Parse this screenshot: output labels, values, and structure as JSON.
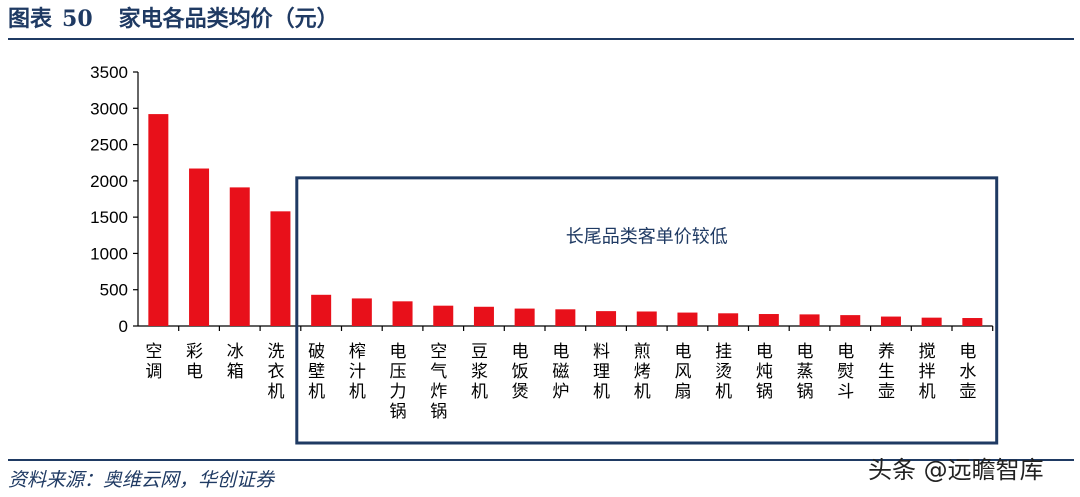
{
  "figure": {
    "label": "图表",
    "number": "50",
    "title": "家电各品类均价（元）",
    "source": "资料来源：奥维云网，华创证券",
    "watermark": "头条 @远瞻智库"
  },
  "colors": {
    "bar": "#e8101a",
    "axis": "#000000",
    "frame": "#1f3a63",
    "accent": "#1f3a63"
  },
  "chart_data": {
    "type": "bar",
    "categories": [
      "空调",
      "彩电",
      "冰箱",
      "洗衣机",
      "破壁机",
      "榨汁机",
      "电压力锅",
      "空气炸锅",
      "豆浆机",
      "电饭煲",
      "电磁炉",
      "料理机",
      "煎烤机",
      "电风扇",
      "挂烫机",
      "电炖锅",
      "电蒸锅",
      "电熨斗",
      "养生壶",
      "搅拌机",
      "电水壶"
    ],
    "values": [
      2920,
      2170,
      1910,
      1580,
      430,
      380,
      340,
      280,
      265,
      240,
      230,
      205,
      200,
      185,
      175,
      165,
      160,
      150,
      130,
      115,
      110
    ],
    "ylim": [
      0,
      3500
    ],
    "yticks": [
      "0",
      "500",
      "1000",
      "1500",
      "2000",
      "2500",
      "3000",
      "3500"
    ],
    "xlabel": "",
    "ylabel": "",
    "grid": false,
    "legend": "none",
    "annotation": {
      "text": "长尾品类客单价较低",
      "spans_categories": [
        "破壁机",
        "电水壶"
      ]
    }
  }
}
